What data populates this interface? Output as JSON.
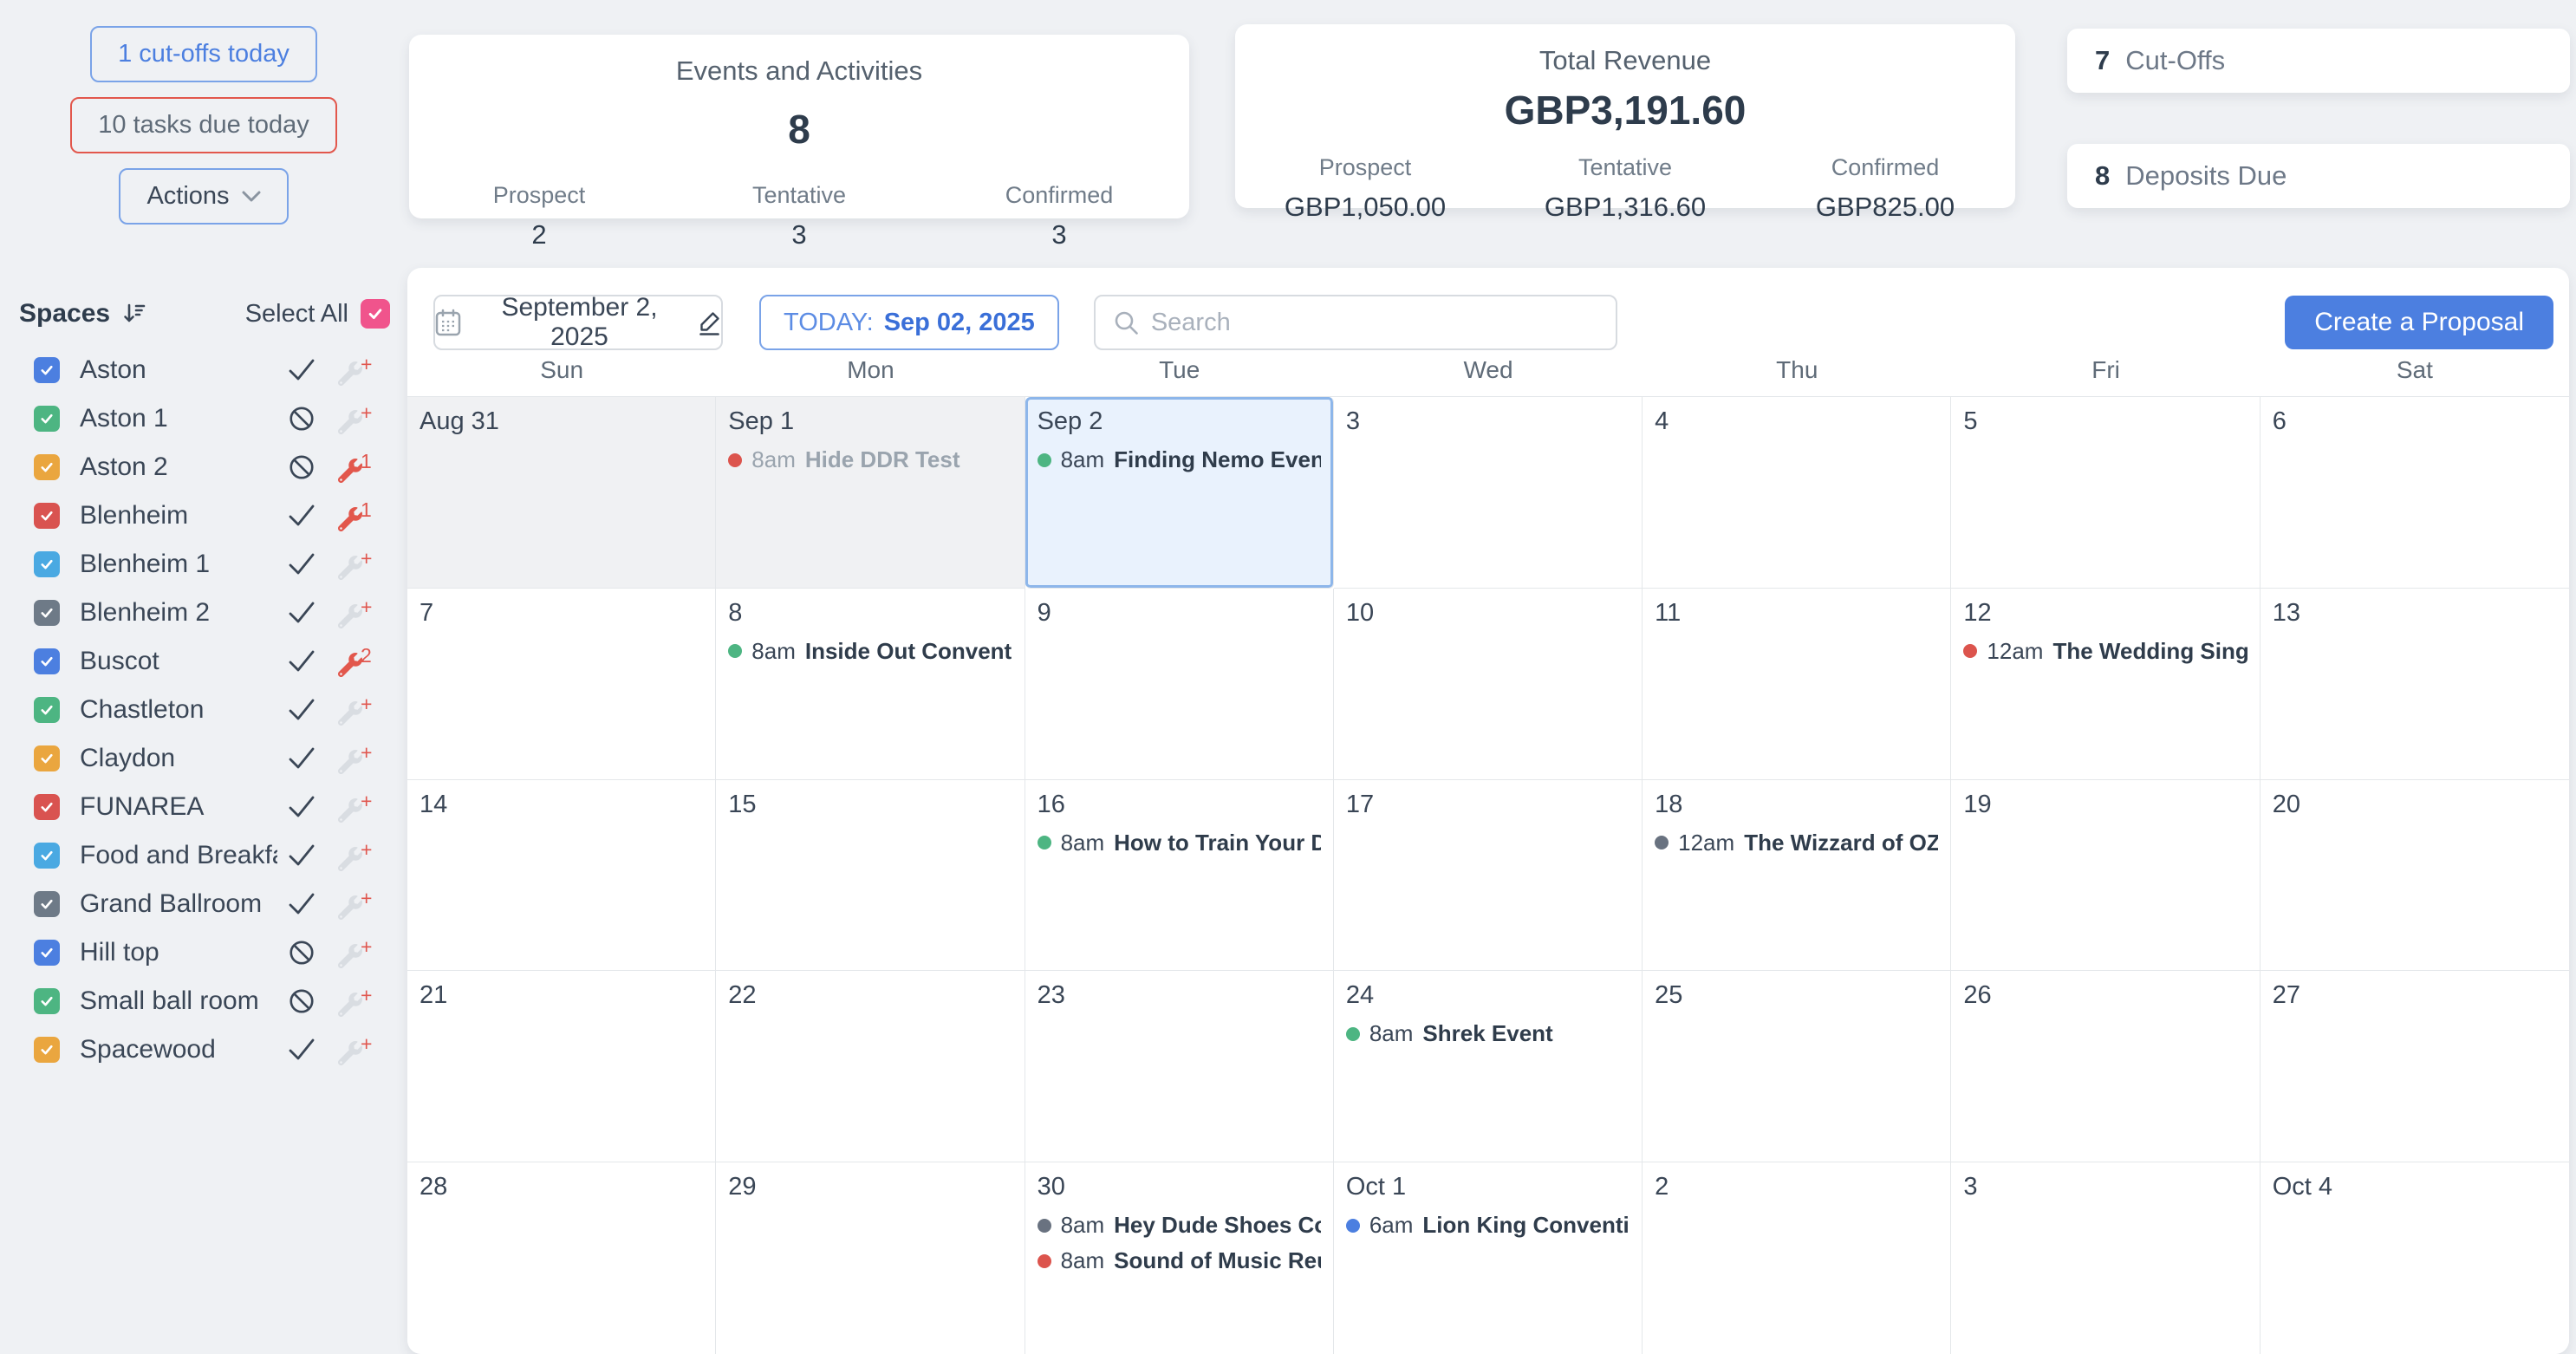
{
  "colors": {
    "accent_blue": "#4c7fe0",
    "danger_red": "#e2574c",
    "select_all_pink": "#f0548c",
    "today_cell_bg": "#e9f2fd",
    "today_cell_border": "#8db6ea"
  },
  "top": {
    "cutoffs_button": "1 cut-offs today",
    "tasks_button": "10 tasks due today",
    "actions_label": "Actions"
  },
  "events_card": {
    "title": "Events and Activities",
    "total": "8",
    "stats": [
      {
        "label": "Prospect",
        "value": "2"
      },
      {
        "label": "Tentative",
        "value": "3"
      },
      {
        "label": "Confirmed",
        "value": "3"
      }
    ]
  },
  "revenue_card": {
    "title": "Total Revenue",
    "total": "GBP3,191.60",
    "stats": [
      {
        "label": "Prospect",
        "value": "GBP1,050.00"
      },
      {
        "label": "Tentative",
        "value": "GBP1,316.60"
      },
      {
        "label": "Confirmed",
        "value": "GBP825.00"
      }
    ]
  },
  "side_cards": [
    {
      "count": "7",
      "label": "Cut-Offs"
    },
    {
      "count": "8",
      "label": "Deposits Due"
    }
  ],
  "sidebar": {
    "title": "Spaces",
    "select_all_label": "Select All",
    "spaces": [
      {
        "name": "Aston",
        "color": "#4c7fe0",
        "availability": "available",
        "maintenance": "add"
      },
      {
        "name": "Aston 1",
        "color": "#4db582",
        "availability": "blocked",
        "maintenance": "add"
      },
      {
        "name": "Aston 2",
        "color": "#eaa63f",
        "availability": "blocked",
        "maintenance": "1"
      },
      {
        "name": "Blenheim",
        "color": "#d95350",
        "availability": "available",
        "maintenance": "1"
      },
      {
        "name": "Blenheim 1",
        "color": "#4aa9e2",
        "availability": "available",
        "maintenance": "add"
      },
      {
        "name": "Blenheim 2",
        "color": "#6e7a87",
        "availability": "available",
        "maintenance": "add"
      },
      {
        "name": "Buscot",
        "color": "#4c7fe0",
        "availability": "available",
        "maintenance": "2"
      },
      {
        "name": "Chastleton",
        "color": "#4db582",
        "availability": "available",
        "maintenance": "add"
      },
      {
        "name": "Claydon",
        "color": "#eaa63f",
        "availability": "available",
        "maintenance": "add"
      },
      {
        "name": "FUNAREA",
        "color": "#d95350",
        "availability": "available",
        "maintenance": "add"
      },
      {
        "name": "Food and Breakfast",
        "color": "#4aa9e2",
        "availability": "available",
        "maintenance": "add"
      },
      {
        "name": "Grand Ballroom",
        "color": "#6e7a87",
        "availability": "available",
        "maintenance": "add"
      },
      {
        "name": "Hill top",
        "color": "#4c7fe0",
        "availability": "blocked",
        "maintenance": "add"
      },
      {
        "name": "Small ball room",
        "color": "#4db582",
        "availability": "blocked",
        "maintenance": "add"
      },
      {
        "name": "Spacewood",
        "color": "#eaa63f",
        "availability": "available",
        "maintenance": "add"
      }
    ]
  },
  "toolbar": {
    "date_label": "September 2, 2025",
    "today_prefix": "TODAY:",
    "today_date": "Sep 02, 2025",
    "search_placeholder": "Search",
    "create_button": "Create a Proposal"
  },
  "calendar": {
    "day_headers": [
      "Sun",
      "Mon",
      "Tue",
      "Wed",
      "Thu",
      "Fri",
      "Sat"
    ],
    "weeks": [
      [
        {
          "label": "Aug 31",
          "muted": true,
          "events": []
        },
        {
          "label": "Sep 1",
          "muted": true,
          "events": [
            {
              "time": "8am",
              "title": "Hide DDR Test",
              "dot": "#dc544d",
              "past": true
            }
          ]
        },
        {
          "label": "Sep 2",
          "today": true,
          "events": [
            {
              "time": "8am",
              "title": "Finding Nemo Event",
              "dot": "#4db582"
            }
          ]
        },
        {
          "label": "3",
          "events": []
        },
        {
          "label": "4",
          "events": []
        },
        {
          "label": "5",
          "events": []
        },
        {
          "label": "6",
          "events": []
        }
      ],
      [
        {
          "label": "7",
          "events": []
        },
        {
          "label": "8",
          "events": [
            {
              "time": "8am",
              "title": "Inside Out Convention",
              "dot": "#4db582"
            }
          ]
        },
        {
          "label": "9",
          "events": []
        },
        {
          "label": "10",
          "events": []
        },
        {
          "label": "11",
          "events": []
        },
        {
          "label": "12",
          "events": [
            {
              "time": "12am",
              "title": "The Wedding Singer",
              "dot": "#dc544d"
            }
          ]
        },
        {
          "label": "13",
          "events": []
        }
      ],
      [
        {
          "label": "14",
          "events": []
        },
        {
          "label": "15",
          "events": []
        },
        {
          "label": "16",
          "events": [
            {
              "time": "8am",
              "title": "How to Train Your Drago",
              "dot": "#4db582"
            }
          ]
        },
        {
          "label": "17",
          "events": []
        },
        {
          "label": "18",
          "events": [
            {
              "time": "12am",
              "title": "The Wizzard of OZ Conv",
              "dot": "#697280"
            }
          ]
        },
        {
          "label": "19",
          "events": []
        },
        {
          "label": "20",
          "events": []
        }
      ],
      [
        {
          "label": "21",
          "events": []
        },
        {
          "label": "22",
          "events": []
        },
        {
          "label": "23",
          "events": []
        },
        {
          "label": "24",
          "events": [
            {
              "time": "8am",
              "title": "Shrek Event",
              "dot": "#4db582"
            }
          ]
        },
        {
          "label": "25",
          "events": []
        },
        {
          "label": "26",
          "events": []
        },
        {
          "label": "27",
          "events": []
        }
      ],
      [
        {
          "label": "28",
          "events": []
        },
        {
          "label": "29",
          "events": []
        },
        {
          "label": "30",
          "events": [
            {
              "time": "8am",
              "title": "Hey Dude Shoes Convent",
              "dot": "#697280"
            },
            {
              "time": "8am",
              "title": "Sound of Music Reunion",
              "dot": "#dc544d"
            }
          ]
        },
        {
          "label": "Oct 1",
          "events": [
            {
              "time": "6am",
              "title": "Lion King Convention",
              "dot": "#4c7fe0"
            }
          ]
        },
        {
          "label": "2",
          "events": []
        },
        {
          "label": "3",
          "events": []
        },
        {
          "label": "Oct 4",
          "events": []
        }
      ]
    ]
  }
}
